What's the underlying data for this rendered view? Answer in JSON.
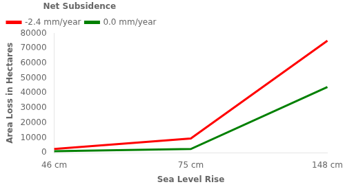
{
  "chart_data": {
    "type": "line",
    "categories": [
      "46 cm",
      "75 cm",
      "148 cm"
    ],
    "series": [
      {
        "name": "-2.4 mm/year",
        "color": "#ff0000",
        "values": [
          2500,
          9500,
          75000
        ]
      },
      {
        "name": "0.0 mm/year",
        "color": "#008000",
        "values": [
          1000,
          2500,
          44000
        ]
      }
    ],
    "xlabel": "Sea Level Rise",
    "ylabel": "Area Loss in Hectares",
    "legend_title": "Net Subsidence",
    "legend": "upper left",
    "ylim": [
      0,
      80000
    ],
    "yticks": [
      0,
      10000,
      20000,
      30000,
      40000,
      50000,
      60000,
      70000,
      80000
    ],
    "grid": false
  }
}
